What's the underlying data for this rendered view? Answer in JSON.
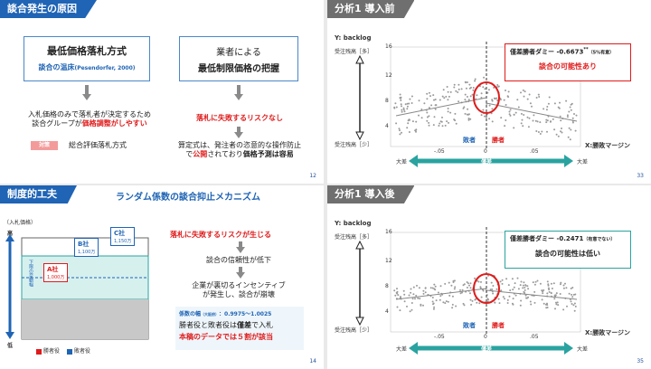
{
  "slide1": {
    "header": "談合発生の原因",
    "box_left_title": "最低価格落札方式",
    "box_left_sub": "談合の温床",
    "box_left_cite": "(Pesendorfer, 2000)",
    "box_right_line1": "業者による",
    "box_right_line2": "最低制限価格の把握",
    "left_text1": "入札価格のみで落札者が決定するため",
    "left_text2a": "談合グループが",
    "left_text2b": "価格調整がしやすい",
    "tag": "対策",
    "tag_text": "総合評価落札方式",
    "right_red": "落札に失敗するリスクなし",
    "right_text1": "算定式は、発注者の恣意的な操作防止",
    "right_text2a": "で",
    "right_text2b": "公開",
    "right_text2c": "されており",
    "right_text2d": "価格予測は容易",
    "page": "12"
  },
  "slide2": {
    "header": "分析1 導入前",
    "ylabel": "Y: backlog",
    "y_top": "受注残高［多］",
    "y_bottom": "受注残高［少］",
    "xlabel": "X:勝敗マージン",
    "loser": "敗者",
    "winner": "勝者",
    "x_left": "大差",
    "x_mid": "僅差",
    "x_right": "大差",
    "box_line1a": "僅差勝者ダミー",
    "box_line1b": "-0.6673",
    "box_line1c": "**",
    "box_line1d": "（5%有意）",
    "box_line2": "談合の可能性あり",
    "page": "33",
    "axis_ticks_y": [
      "16",
      "12",
      "8",
      "4"
    ],
    "axis_ticks_x": [
      "-.05",
      "0",
      ".05"
    ]
  },
  "slide3": {
    "header": "制度的工夫",
    "subtitle": "ランダム係数の談合抑止メカニズム",
    "yaxis": "（入札価格）",
    "high": "高",
    "low": "低",
    "band_label": "下限の変動幅",
    "companyA": "A社",
    "companyA_val": "1,000万",
    "companyB": "B社",
    "companyB_val": "1,100万",
    "companyC": "C社",
    "companyC_val": "1,150万",
    "legend_win": "勝者役",
    "legend_lose": "敗者役",
    "red_head": "落札に失敗するリスクが生じる",
    "step1": "談合の信頼性が低下",
    "step2a": "企業が裏切るインセンティブ",
    "step2b": "が発生し、談合が崩壊",
    "coef_label": "係数の幅",
    "coef_small": "（大阪府）",
    "coef_range": "：0.9975～1.0025",
    "last1a": "勝者役と敗者役は",
    "last1b": "僅差",
    "last1c": "で入札",
    "last2": "本稿のデータでは５割が該当",
    "page": "14"
  },
  "slide4": {
    "header": "分析1 導入後",
    "ylabel": "Y: backlog",
    "y_top": "受注残高［多］",
    "y_bottom": "受注残高［少］",
    "xlabel": "X:勝敗マージン",
    "loser": "敗者",
    "winner": "勝者",
    "x_left": "大差",
    "x_mid": "僅差",
    "x_right": "大差",
    "box_line1a": "僅差勝者ダミー",
    "box_line1b": "-0.2471",
    "box_line1d": "（有意でない）",
    "box_line2": "談合の可能性は低い",
    "page": "35",
    "axis_ticks_y": [
      "16",
      "12",
      "8",
      "4"
    ],
    "axis_ticks_x": [
      "-.05",
      "0",
      ".05"
    ]
  },
  "colors": {
    "blue": "#1f64b5",
    "red": "#e01b1b",
    "teal": "#2aa3a0",
    "gray": "#6f6f6f"
  }
}
